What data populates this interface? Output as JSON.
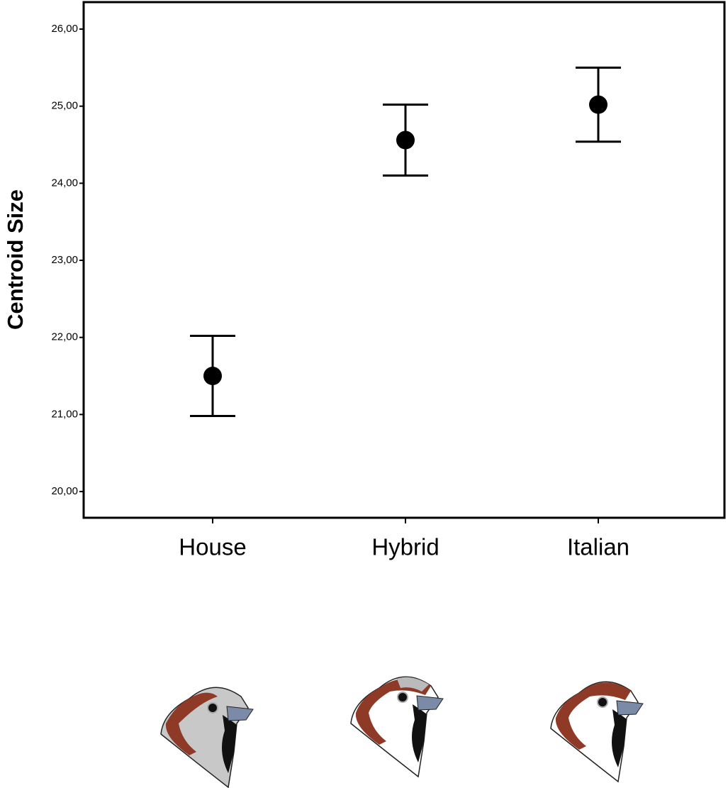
{
  "chart_data": {
    "type": "errorbar",
    "y_label": "Centroid Size",
    "categories": [
      "House",
      "Hybrid",
      "Italian"
    ],
    "values": [
      21.5,
      24.56,
      25.02
    ],
    "errors": [
      0.52,
      0.46,
      0.48
    ],
    "color": "#000000",
    "ylim": [
      19.66,
      26.35
    ],
    "yticks": [
      {
        "value": 20,
        "label": "20,00"
      },
      {
        "value": 21,
        "label": "21,00"
      },
      {
        "value": 22,
        "label": "22,00"
      },
      {
        "value": 23,
        "label": "23,00"
      },
      {
        "value": 24,
        "label": "24,00"
      },
      {
        "value": 25,
        "label": "25,00"
      },
      {
        "value": 26,
        "label": "26,00"
      }
    ],
    "grid": false
  }
}
